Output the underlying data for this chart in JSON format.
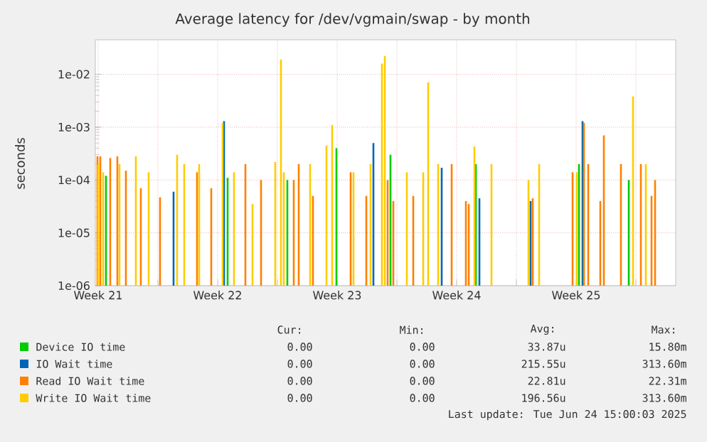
{
  "chart_data": {
    "type": "bar",
    "title": "Average latency for /dev/vgmain/swap - by month",
    "ylabel": "seconds",
    "log": "y",
    "grid": true,
    "legend": "bottom",
    "xlim": [
      "2025-05-22T08:00",
      "2025-06-25T08:00"
    ],
    "ylim": [
      1e-06,
      0.045
    ],
    "xticks": [
      {
        "value": "2025-05-22T12:00",
        "label": "Week 21"
      },
      {
        "value": "2025-05-26T00:00",
        "label": null
      },
      {
        "value": "2025-05-29T12:00",
        "label": "Week 22"
      },
      {
        "value": "2025-06-02T00:00",
        "label": null
      },
      {
        "value": "2025-06-05T12:00",
        "label": "Week 23"
      },
      {
        "value": "2025-06-09T00:00",
        "label": null
      },
      {
        "value": "2025-06-12T12:00",
        "label": "Week 24"
      },
      {
        "value": "2025-06-16T00:00",
        "label": null
      },
      {
        "value": "2025-06-19T12:00",
        "label": "Week 25"
      },
      {
        "value": "2025-06-23T00:00",
        "label": null
      }
    ],
    "yticks": [
      {
        "value": 1e-06,
        "label": "1e-06"
      },
      {
        "value": 1e-05,
        "label": "1e-05"
      },
      {
        "value": 0.0001,
        "label": "1e-04"
      },
      {
        "value": 0.001,
        "label": "1e-03"
      },
      {
        "value": 0.01,
        "label": "1e-02"
      }
    ],
    "series": [
      {
        "name": "Device IO time",
        "color": "#00cc00",
        "x": [
          "2025-05-22T23:00",
          "2025-05-30T02:00",
          "2025-06-02T14:00",
          "2025-06-05T11:00",
          "2025-06-08T15:00",
          "2025-06-13T15:00",
          "2025-06-19T16:00",
          "2025-06-22T14:00"
        ],
        "values": [
          0.00012,
          0.00011,
          0.0001,
          0.0004,
          0.0003,
          0.0002,
          0.0002,
          0.0001
        ]
      },
      {
        "name": "IO Wait time",
        "color": "#0066b3",
        "x": [
          "2025-05-26T22:00",
          "2025-05-29T21:00",
          "2025-06-07T15:00",
          "2025-06-11T15:00",
          "2025-06-13T20:00",
          "2025-06-16T20:00",
          "2025-06-19T21:00"
        ],
        "values": [
          6e-05,
          0.0013,
          0.0005,
          0.00017,
          4.5e-05,
          4e-05,
          0.0013
        ]
      },
      {
        "name": "Read IO Wait time",
        "color": "#ff8000",
        "x": [
          "2025-05-22T11:00",
          "2025-05-22T15:00",
          "2025-05-23T05:00",
          "2025-05-23T15:00",
          "2025-05-24T03:00",
          "2025-05-25T00:00",
          "2025-05-26T03:00",
          "2025-05-28T07:00",
          "2025-05-29T03:00",
          "2025-05-31T03:00",
          "2025-06-01T01:00",
          "2025-06-02T23:00",
          "2025-06-03T06:00",
          "2025-06-04T02:00",
          "2025-06-06T07:00",
          "2025-06-07T05:00",
          "2025-06-08T11:00",
          "2025-06-08T19:00",
          "2025-06-09T23:00",
          "2025-06-12T05:00",
          "2025-06-13T01:00",
          "2025-06-13T05:00",
          "2025-06-16T23:00",
          "2025-06-19T07:00",
          "2025-06-19T23:00",
          "2025-06-20T05:00",
          "2025-06-20T22:00",
          "2025-06-21T03:00",
          "2025-06-22T03:00",
          "2025-06-23T07:00",
          "2025-06-23T22:00",
          "2025-06-24T03:00"
        ],
        "values": [
          0.00028,
          0.00028,
          0.00026,
          0.00028,
          0.00015,
          7e-05,
          4.7e-05,
          0.00014,
          7e-05,
          0.0002,
          0.0001,
          0.0001,
          0.0002,
          5e-05,
          0.00014,
          5e-05,
          0.0001,
          4e-05,
          5e-05,
          0.0002,
          4e-05,
          3.5e-05,
          4.5e-05,
          0.00014,
          0.0012,
          0.0002,
          4e-05,
          0.0007,
          0.0002,
          0.0002,
          5e-05,
          0.0001
        ]
      },
      {
        "name": "Write IO Wait time",
        "color": "#ffcc00",
        "x": [
          "2025-05-22T12:00",
          "2025-05-22T19:00",
          "2025-05-23T18:00",
          "2025-05-24T17:00",
          "2025-05-25T11:00",
          "2025-05-27T03:00",
          "2025-05-27T13:00",
          "2025-05-28T10:00",
          "2025-05-29T19:00",
          "2025-05-30T11:00",
          "2025-05-31T13:00",
          "2025-06-01T21:00",
          "2025-06-02T05:00",
          "2025-06-02T09:00",
          "2025-06-03T22:00",
          "2025-06-04T21:00",
          "2025-06-05T05:00",
          "2025-06-06T11:00",
          "2025-06-07T11:00",
          "2025-06-08T03:00",
          "2025-06-08T07:00",
          "2025-06-09T14:00",
          "2025-06-10T13:00",
          "2025-06-10T20:00",
          "2025-06-11T10:00",
          "2025-06-13T13:00",
          "2025-06-14T13:00",
          "2025-06-16T17:00",
          "2025-06-17T08:00",
          "2025-06-19T13:00",
          "2025-06-22T20:00",
          "2025-06-23T14:00"
        ],
        "values": [
          0.0002,
          0.00014,
          0.0002,
          0.00028,
          0.00014,
          0.0003,
          0.0002,
          0.0002,
          0.0012,
          0.00014,
          3.5e-05,
          0.00022,
          0.019,
          0.00014,
          0.0002,
          0.00045,
          0.0011,
          0.00014,
          0.0002,
          0.016,
          0.022,
          0.00014,
          0.00014,
          0.007,
          0.0002,
          0.00043,
          0.0002,
          0.0001,
          0.0002,
          0.00014,
          0.0038,
          0.0002
        ]
      }
    ],
    "annotations": [
      "Cur:",
      "Min:",
      "Avg:",
      "Max:",
      "0.00",
      "0.00",
      "33.87u",
      "15.80m",
      "0.00",
      "0.00",
      "215.55u",
      "313.60m",
      "0.00",
      "0.00",
      "22.81u",
      "22.31m",
      "0.00",
      "0.00",
      "196.56u",
      "313.60m",
      "Last update: Tue Jun 24 15:00:03 2025"
    ]
  }
}
